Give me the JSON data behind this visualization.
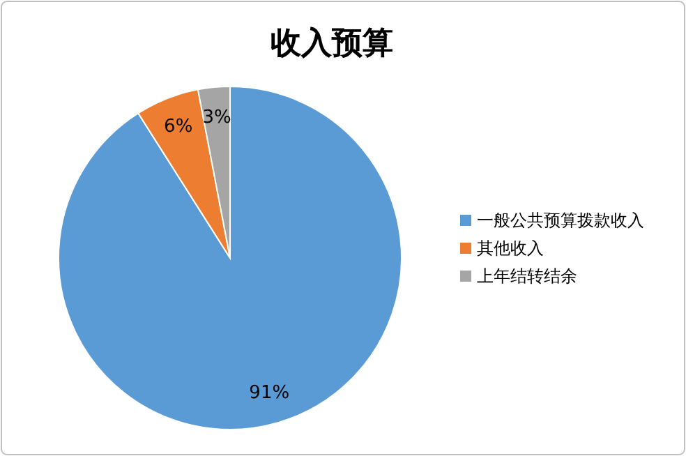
{
  "chart_data": {
    "type": "pie",
    "title": "收入预算",
    "categories": [
      "一般公共预算拨款收入",
      "其他收入",
      "上年结转结余"
    ],
    "values": [
      91,
      6,
      3
    ],
    "colors": [
      "#5b9bd5",
      "#ed7d31",
      "#a5a5a5"
    ],
    "value_labels": [
      "91%",
      "6%",
      "3%"
    ],
    "legend": "right"
  }
}
